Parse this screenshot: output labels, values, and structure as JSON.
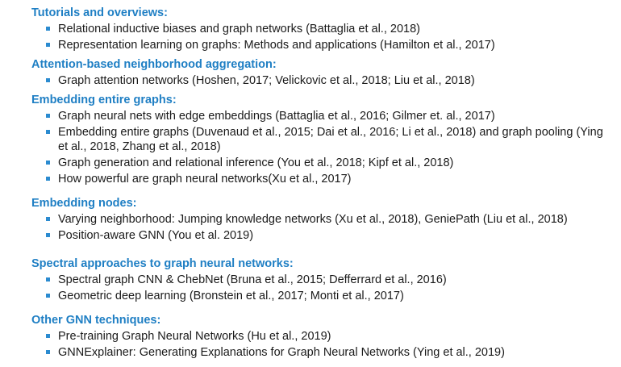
{
  "sections": [
    {
      "heading": "Tutorials and overviews:",
      "items": [
        "Relational inductive biases and graph networks (Battaglia et al., 2018)",
        "Representation learning on graphs: Methods and applications (Hamilton et al., 2017)"
      ]
    },
    {
      "heading": "Attention-based neighborhood aggregation:",
      "items": [
        "Graph attention networks (Hoshen, 2017; Velickovic et al., 2018; Liu et al., 2018)"
      ]
    },
    {
      "heading": "Embedding entire graphs:",
      "items": [
        "Graph neural nets with edge embeddings (Battaglia et al., 2016; Gilmer et. al., 2017)",
        "Embedding entire graphs (Duvenaud et al., 2015; Dai et al., 2016; Li et al., 2018) and graph pooling (Ying et al., 2018,  Zhang et al., 2018)",
        "Graph generation and relational inference (You et al., 2018; Kipf et al., 2018)",
        "How powerful are graph neural networks(Xu et al., 2017)"
      ]
    },
    {
      "heading": "Embedding nodes:",
      "items": [
        "Varying neighborhood: Jumping knowledge networks (Xu et al., 2018), GeniePath (Liu et al., 2018)",
        "Position-aware GNN (You et al. 2019)"
      ]
    },
    {
      "heading": "Spectral approaches to graph neural networks:",
      "items": [
        "Spectral graph CNN & ChebNet (Bruna et al., 2015; Defferrard et al., 2016)",
        "Geometric deep learning (Bronstein et al., 2017; Monti et al., 2017)"
      ]
    },
    {
      "heading": "Other GNN techniques:",
      "items": [
        "Pre-training Graph Neural Networks (Hu et al., 2019)",
        "GNNExplainer: Generating Explanations for Graph Neural Networks (Ying et al., 2019)"
      ]
    }
  ]
}
